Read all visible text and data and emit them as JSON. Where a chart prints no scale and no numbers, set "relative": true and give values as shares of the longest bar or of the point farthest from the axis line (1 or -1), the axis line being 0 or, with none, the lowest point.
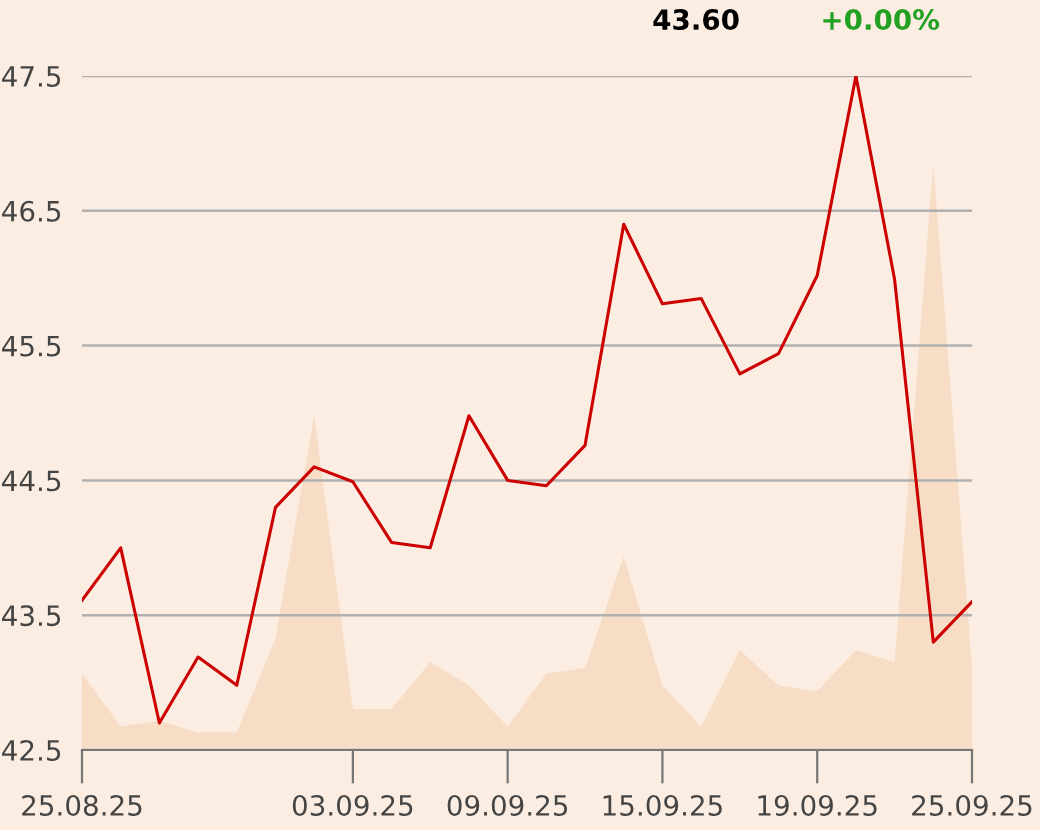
{
  "chart_data": [
    {
      "type": "line",
      "categories": [
        "25.08.25",
        null,
        null,
        null,
        null,
        null,
        null,
        "03.09.25",
        null,
        null,
        null,
        "09.09.25",
        null,
        null,
        null,
        "15.09.25",
        null,
        null,
        null,
        "19.09.25",
        null,
        null,
        null,
        "25.09.25"
      ],
      "series": [
        {
          "color": "#cc0000",
          "values": [
            43.61,
            44.0,
            42.7,
            43.19,
            42.98,
            44.3,
            44.6,
            44.49,
            44.04,
            44.0,
            44.98,
            44.5,
            44.46,
            44.76,
            46.4,
            45.81,
            45.85,
            45.29,
            45.44,
            46.02,
            47.5,
            45.99,
            43.3,
            43.6
          ]
        }
      ],
      "ylim": [
        42.5,
        47.5
      ],
      "yticks": [
        42.5,
        43.5,
        44.5,
        45.5,
        46.5,
        47.5
      ],
      "grid": "y",
      "marker": "none",
      "line_style": "solid",
      "annotations": [
        "43.60",
        "+0.00%"
      ]
    },
    {
      "type": "area",
      "relative": true,
      "categories": [
        null,
        null,
        null,
        null,
        null,
        null,
        null,
        null,
        null,
        null,
        null,
        null,
        null,
        null,
        null,
        null,
        null,
        null,
        null,
        null,
        null,
        null,
        null,
        null
      ],
      "series": [
        {
          "color": "#f7dcc6",
          "values": [
            0.13,
            0.04,
            0.05,
            0.03,
            0.03,
            0.19,
            0.57,
            0.07,
            0.07,
            0.15,
            0.11,
            0.04,
            0.13,
            0.14,
            0.33,
            0.11,
            0.04,
            0.17,
            0.11,
            0.1,
            0.17,
            0.15,
            1,
            0.14
          ]
        }
      ]
    }
  ]
}
